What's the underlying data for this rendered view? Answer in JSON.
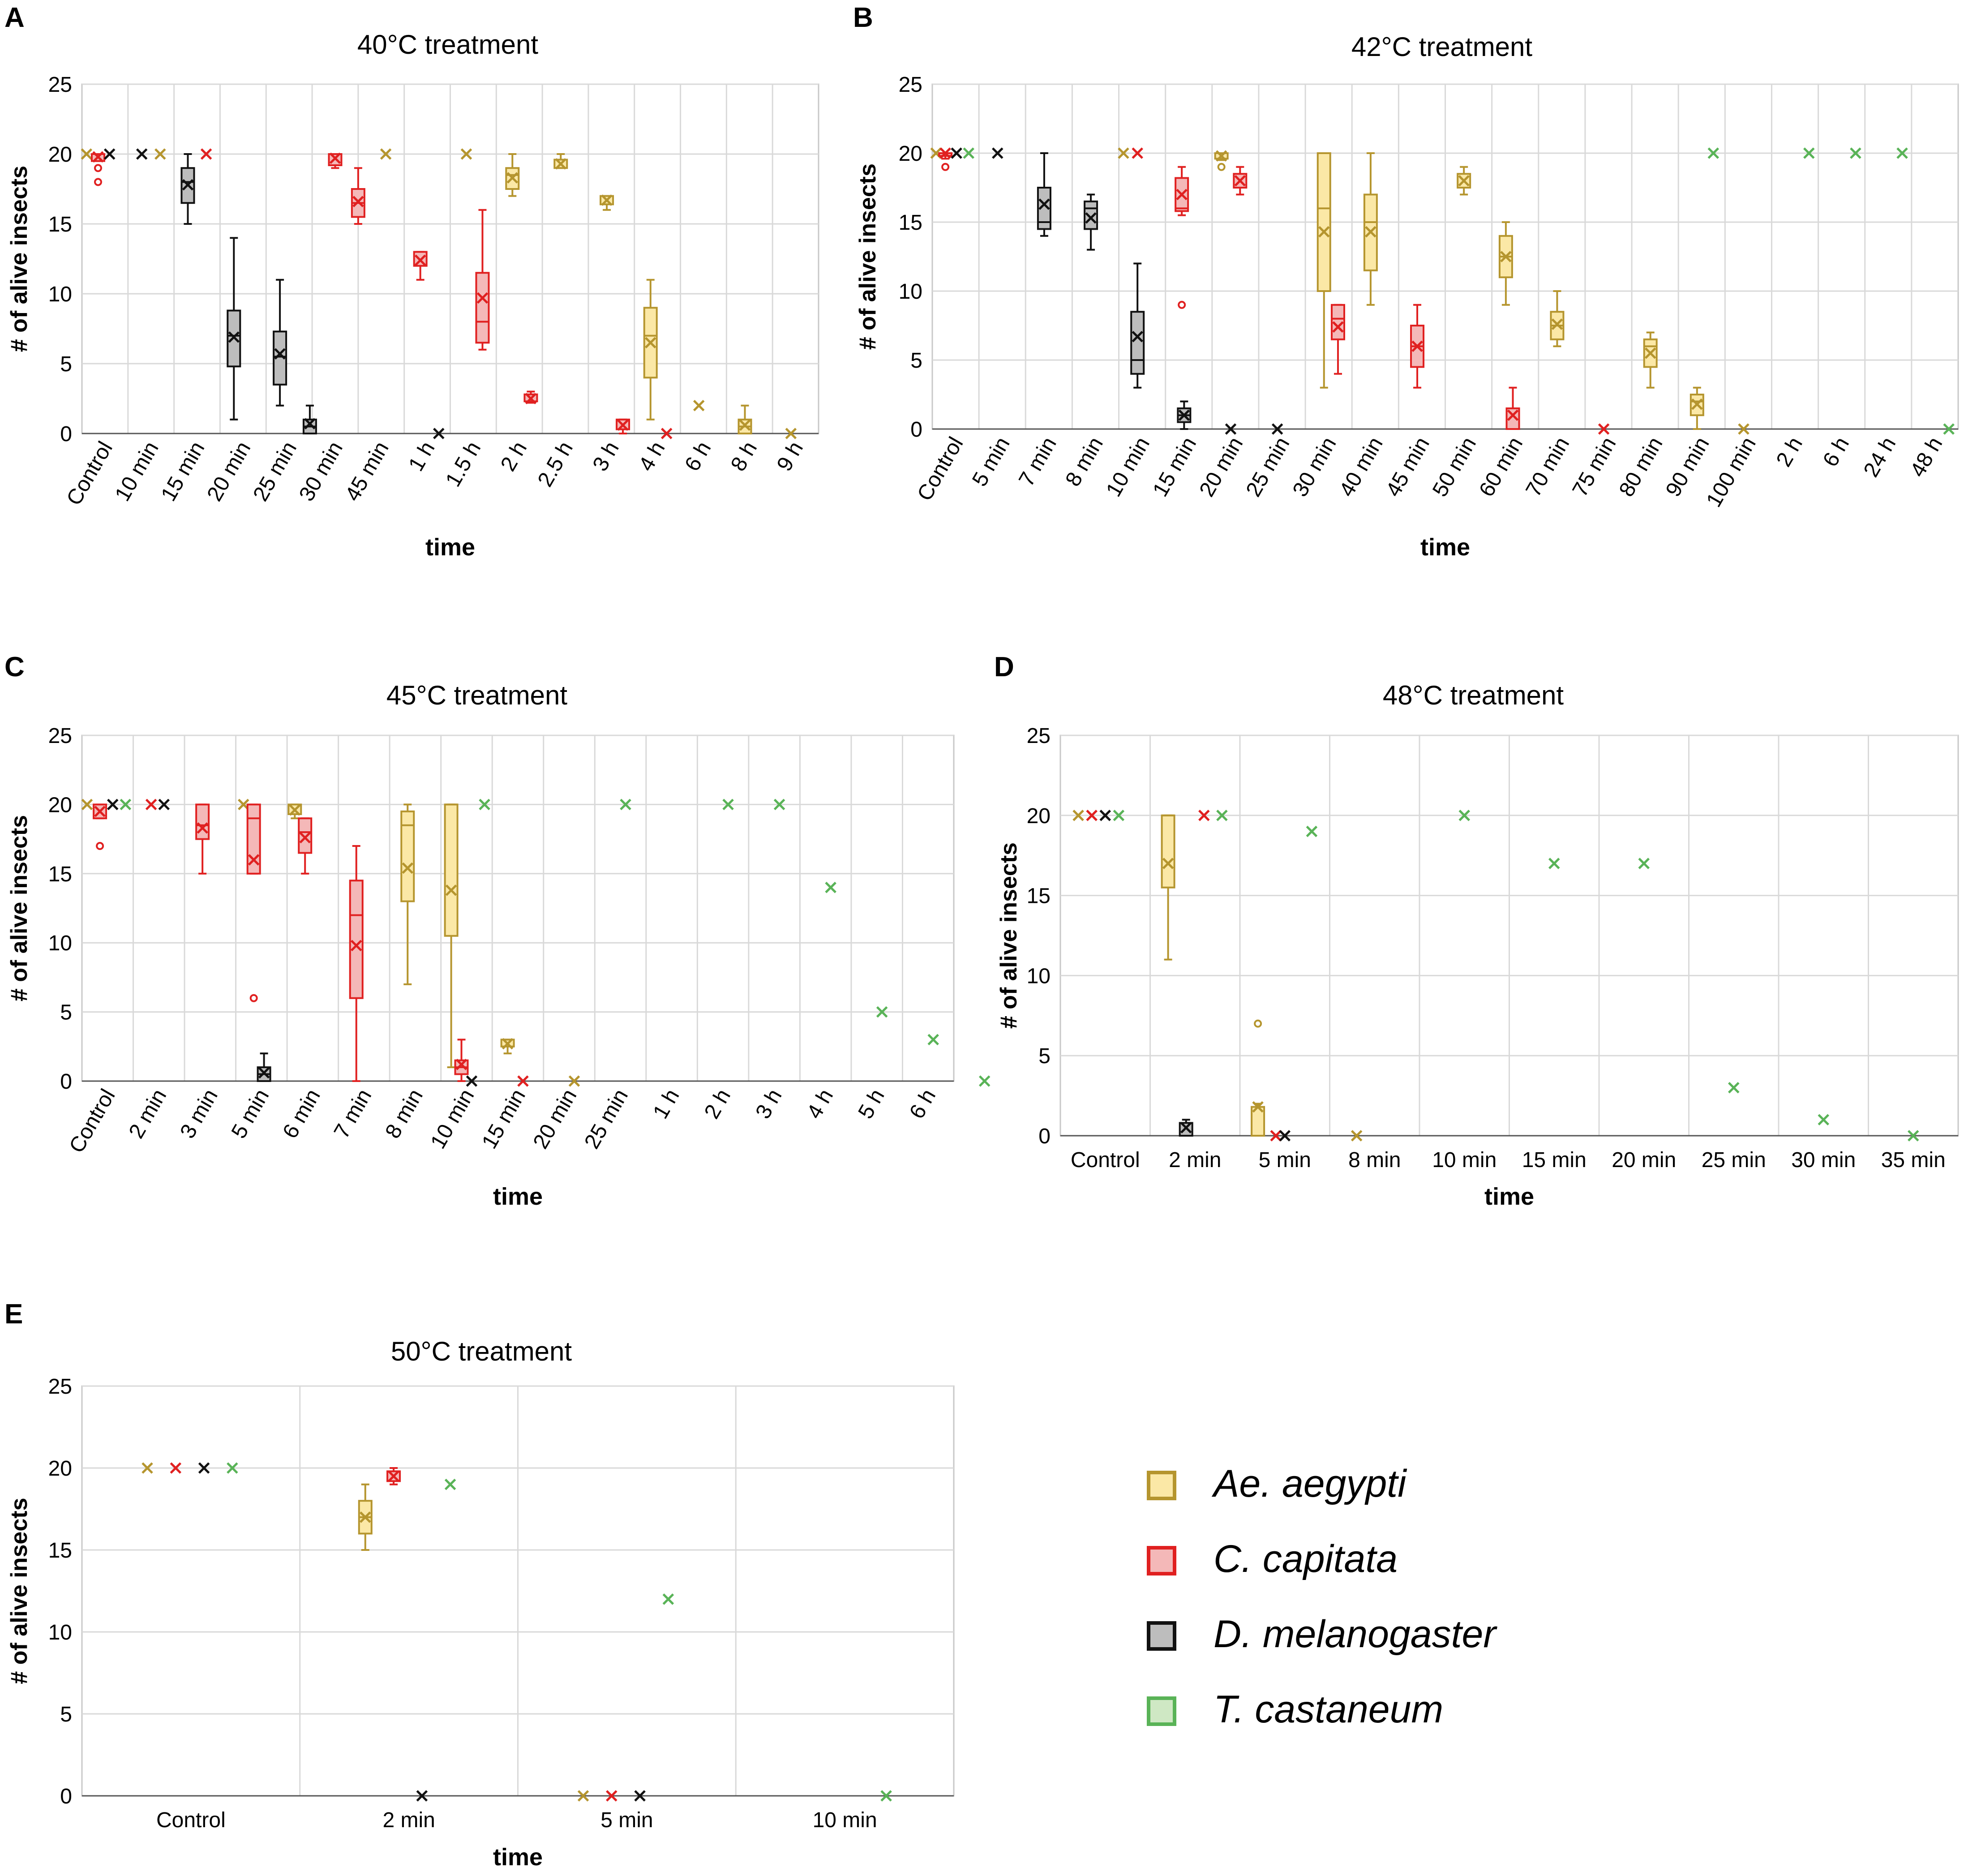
{
  "species": [
    {
      "key": "ae",
      "name": "Ae. aegypti",
      "stroke": "#b5952e",
      "fill": "#fbe8a6"
    },
    {
      "key": "cc",
      "name": "C. capitata",
      "stroke": "#e02020",
      "fill": "#f4b8b8"
    },
    {
      "key": "dm",
      "name": "D. melanogaster",
      "stroke": "#111111",
      "fill": "#bdbdbd"
    },
    {
      "key": "tc",
      "name": "T. castaneum",
      "stroke": "#59b357",
      "fill": "#cfe8c4"
    }
  ],
  "chart_data": [
    {
      "id": "A",
      "type": "boxplot",
      "title": "40°C treatment",
      "xlabel": "time",
      "ylabel": "# of alive insects",
      "ylim": [
        0,
        25
      ],
      "yticks": [
        "0",
        "5",
        "10",
        "15",
        "20",
        "25"
      ],
      "categories": [
        "Control",
        "10 min",
        "15 min",
        "20 min",
        "25 min",
        "30 min",
        "45 min",
        "1 h",
        "1.5 h",
        "2 h",
        "2.5 h",
        "3 h",
        "4 h",
        "6 h",
        "8 h",
        "9 h"
      ],
      "marks": [
        {
          "pos": 0.1,
          "sp": "ae",
          "mean": 20
        },
        {
          "pos": 0.35,
          "sp": "cc",
          "q1": 19.5,
          "q3": 20,
          "lo": 19.5,
          "hi": 20,
          "mean": 19.8,
          "outliers": [
            19,
            18
          ]
        },
        {
          "pos": 0.6,
          "sp": "dm",
          "mean": 20
        },
        {
          "pos": 1.3,
          "sp": "dm",
          "mean": 20
        },
        {
          "pos": 1.7,
          "sp": "ae",
          "mean": 20
        },
        {
          "pos": 2.3,
          "sp": "dm",
          "q1": 16.5,
          "q3": 19,
          "lo": 15,
          "hi": 20,
          "med": 18,
          "mean": 17.8
        },
        {
          "pos": 2.7,
          "sp": "cc",
          "mean": 20
        },
        {
          "pos": 3.3,
          "sp": "dm",
          "q1": 4.8,
          "q3": 8.8,
          "lo": 1,
          "hi": 14,
          "med": 7,
          "mean": 6.9
        },
        {
          "pos": 4.3,
          "sp": "dm",
          "q1": 3.5,
          "q3": 7.3,
          "lo": 2,
          "hi": 11,
          "med": 5.5,
          "mean": 5.7
        },
        {
          "pos": 4.95,
          "sp": "dm",
          "q1": 0,
          "q3": 1,
          "lo": 0,
          "hi": 2,
          "med": 0.5,
          "mean": 0.7
        },
        {
          "pos": 5.5,
          "sp": "cc",
          "q1": 19.2,
          "q3": 20,
          "lo": 19,
          "hi": 20,
          "mean": 19.7
        },
        {
          "pos": 6.0,
          "sp": "cc",
          "q1": 15.5,
          "q3": 17.5,
          "lo": 15,
          "hi": 19,
          "med": 16.5,
          "mean": 16.6
        },
        {
          "pos": 6.6,
          "sp": "ae",
          "mean": 20
        },
        {
          "pos": 7.35,
          "sp": "cc",
          "q1": 12,
          "q3": 13,
          "lo": 11,
          "hi": 13,
          "mean": 12.4
        },
        {
          "pos": 7.75,
          "sp": "dm",
          "mean": 0
        },
        {
          "pos": 8.35,
          "sp": "ae",
          "mean": 20
        },
        {
          "pos": 8.7,
          "sp": "cc",
          "q1": 6.5,
          "q3": 11.5,
          "lo": 6,
          "hi": 16,
          "med": 8,
          "mean": 9.7
        },
        {
          "pos": 9.35,
          "sp": "ae",
          "q1": 17.5,
          "q3": 19,
          "lo": 17,
          "hi": 20,
          "med": 18.5,
          "mean": 18.3
        },
        {
          "pos": 9.75,
          "sp": "cc",
          "q1": 2.3,
          "q3": 2.8,
          "lo": 2.2,
          "hi": 3,
          "mean": 2.5
        },
        {
          "pos": 10.4,
          "sp": "ae",
          "q1": 19,
          "q3": 19.6,
          "lo": 19,
          "hi": 20,
          "mean": 19.3
        },
        {
          "pos": 11.4,
          "sp": "ae",
          "q1": 16.4,
          "q3": 17,
          "lo": 16,
          "hi": 17,
          "mean": 16.7
        },
        {
          "pos": 11.75,
          "sp": "cc",
          "q1": 0.3,
          "q3": 1,
          "lo": 0,
          "hi": 1,
          "mean": 0.6
        },
        {
          "pos": 12.35,
          "sp": "ae",
          "q1": 4,
          "q3": 9,
          "lo": 1,
          "hi": 11,
          "med": 7,
          "mean": 6.5
        },
        {
          "pos": 12.7,
          "sp": "cc",
          "mean": 0
        },
        {
          "pos": 13.4,
          "sp": "ae",
          "mean": 2
        },
        {
          "pos": 14.4,
          "sp": "ae",
          "q1": 0,
          "q3": 1,
          "lo": 0,
          "hi": 2,
          "med": 0.5,
          "mean": 0.6
        },
        {
          "pos": 15.4,
          "sp": "ae",
          "mean": 0
        }
      ]
    },
    {
      "id": "B",
      "type": "boxplot",
      "title": "42°C treatment",
      "xlabel": "time",
      "ylabel": "# of alive  insects",
      "ylim": [
        0,
        25
      ],
      "yticks": [
        "0",
        "5",
        "10",
        "15",
        "20",
        "25"
      ],
      "categories": [
        "Control",
        "5 min",
        "7 min",
        "8 min",
        "10 min",
        "15 min",
        "20 min",
        "25 min",
        "30 min",
        "40 min",
        "45 min",
        "50 min",
        "60 min",
        "70 min",
        "75 min",
        "80 min",
        "90 min",
        "100 min",
        "2 h",
        "6 h",
        "24 h",
        "48 h"
      ],
      "marks": [
        {
          "pos": 0.08,
          "sp": "ae",
          "mean": 20
        },
        {
          "pos": 0.28,
          "sp": "cc",
          "q1": 19.8,
          "q3": 20,
          "lo": 19.6,
          "hi": 20,
          "mean": 20,
          "outliers": [
            19
          ]
        },
        {
          "pos": 0.52,
          "sp": "dm",
          "mean": 20
        },
        {
          "pos": 0.78,
          "sp": "tc",
          "mean": 20
        },
        {
          "pos": 1.4,
          "sp": "dm",
          "mean": 20
        },
        {
          "pos": 2.4,
          "sp": "dm",
          "q1": 14.5,
          "q3": 17.5,
          "lo": 14,
          "hi": 20,
          "med": 15,
          "mean": 16.3
        },
        {
          "pos": 3.4,
          "sp": "dm",
          "q1": 14.5,
          "q3": 16.5,
          "lo": 13,
          "hi": 17,
          "med": 16,
          "mean": 15.3
        },
        {
          "pos": 4.1,
          "sp": "ae",
          "mean": 20
        },
        {
          "pos": 4.4,
          "sp": "cc",
          "mean": 20
        },
        {
          "pos": 4.4,
          "sp": "dm",
          "q1": 4,
          "q3": 8.5,
          "lo": 3,
          "hi": 12,
          "med": 5,
          "mean": 6.7
        },
        {
          "pos": 5.35,
          "sp": "cc",
          "q1": 15.8,
          "q3": 18.2,
          "lo": 15.5,
          "hi": 19,
          "med": 16,
          "mean": 17,
          "outliers": [
            9
          ]
        },
        {
          "pos": 5.4,
          "sp": "dm",
          "q1": 0.5,
          "q3": 1.5,
          "lo": 0,
          "hi": 2,
          "med": 1,
          "mean": 1
        },
        {
          "pos": 6.2,
          "sp": "ae",
          "q1": 19.6,
          "q3": 20,
          "lo": 19.5,
          "hi": 20,
          "mean": 19.8,
          "outliers": [
            19
          ]
        },
        {
          "pos": 6.4,
          "sp": "dm",
          "mean": 0
        },
        {
          "pos": 6.6,
          "sp": "cc",
          "q1": 17.5,
          "q3": 18.5,
          "lo": 17,
          "hi": 19,
          "mean": 18
        },
        {
          "pos": 7.4,
          "sp": "dm",
          "mean": 0
        },
        {
          "pos": 8.4,
          "sp": "ae",
          "q1": 10,
          "q3": 20,
          "lo": 3,
          "hi": 20,
          "med": 16,
          "mean": 14.3
        },
        {
          "pos": 8.7,
          "sp": "cc",
          "q1": 6.5,
          "q3": 9,
          "lo": 4,
          "hi": 9,
          "med": 8,
          "mean": 7.4
        },
        {
          "pos": 9.4,
          "sp": "ae",
          "q1": 11.5,
          "q3": 17,
          "lo": 9,
          "hi": 20,
          "med": 15,
          "mean": 14.3
        },
        {
          "pos": 10.4,
          "sp": "cc",
          "q1": 4.5,
          "q3": 7.5,
          "lo": 3,
          "hi": 9,
          "med": 6,
          "mean": 6
        },
        {
          "pos": 11.4,
          "sp": "ae",
          "q1": 17.5,
          "q3": 18.5,
          "lo": 17,
          "hi": 19,
          "mean": 18
        },
        {
          "pos": 12.3,
          "sp": "ae",
          "q1": 11,
          "q3": 14,
          "lo": 9,
          "hi": 15,
          "med": 12.5,
          "mean": 12.5
        },
        {
          "pos": 12.45,
          "sp": "cc",
          "q1": 0,
          "q3": 1.5,
          "lo": 0,
          "hi": 3,
          "mean": 1
        },
        {
          "pos": 13.4,
          "sp": "ae",
          "q1": 6.5,
          "q3": 8.5,
          "lo": 6,
          "hi": 10,
          "med": 7.5,
          "mean": 7.6
        },
        {
          "pos": 14.4,
          "sp": "cc",
          "mean": 0
        },
        {
          "pos": 15.4,
          "sp": "ae",
          "q1": 4.5,
          "q3": 6.5,
          "lo": 3,
          "hi": 7,
          "med": 6,
          "mean": 5.5
        },
        {
          "pos": 16.4,
          "sp": "ae",
          "q1": 1,
          "q3": 2.5,
          "lo": 0,
          "hi": 3,
          "med": 2,
          "mean": 1.8
        },
        {
          "pos": 16.75,
          "sp": "tc",
          "mean": 20
        },
        {
          "pos": 17.4,
          "sp": "ae",
          "mean": 0
        },
        {
          "pos": 18.8,
          "sp": "tc",
          "mean": 20
        },
        {
          "pos": 19.8,
          "sp": "tc",
          "mean": 20
        },
        {
          "pos": 20.8,
          "sp": "tc",
          "mean": 20
        },
        {
          "pos": 21.8,
          "sp": "tc",
          "mean": 0
        }
      ]
    },
    {
      "id": "C",
      "type": "boxplot",
      "title": "45°C treatment",
      "xlabel": "time",
      "ylabel": "# of alive insects",
      "ylim": [
        0,
        25
      ],
      "yticks": [
        "0",
        "5",
        "10",
        "15",
        "20",
        "25"
      ],
      "categories": [
        "Control",
        "2 min",
        "3 min",
        "5 min",
        "6 min",
        "7 min",
        "8 min",
        "10 min",
        "15 min",
        "20 min",
        "25 min",
        "1 h",
        "2 h",
        "3 h",
        "4 h",
        "5 h",
        "6 h"
      ],
      "marks": [
        {
          "pos": 0.1,
          "sp": "ae",
          "mean": 20
        },
        {
          "pos": 0.35,
          "sp": "cc",
          "q1": 19,
          "q3": 20,
          "lo": 19,
          "hi": 20,
          "mean": 19.5,
          "outliers": [
            17
          ]
        },
        {
          "pos": 0.6,
          "sp": "dm",
          "mean": 20
        },
        {
          "pos": 0.85,
          "sp": "tc",
          "mean": 20
        },
        {
          "pos": 1.35,
          "sp": "cc",
          "mean": 20
        },
        {
          "pos": 1.6,
          "sp": "dm",
          "mean": 20
        },
        {
          "pos": 2.35,
          "sp": "cc",
          "q1": 17.5,
          "q3": 20,
          "lo": 15,
          "hi": 20,
          "med": 18.5,
          "mean": 18.3
        },
        {
          "pos": 3.15,
          "sp": "ae",
          "mean": 20
        },
        {
          "pos": 3.35,
          "sp": "cc",
          "q1": 15,
          "q3": 20,
          "lo": 15,
          "hi": 20,
          "med": 19,
          "mean": 16,
          "outliers": [
            6
          ]
        },
        {
          "pos": 3.55,
          "sp": "dm",
          "q1": 0,
          "q3": 1,
          "lo": 0,
          "hi": 2,
          "med": 0.5,
          "mean": 0.6
        },
        {
          "pos": 4.15,
          "sp": "ae",
          "q1": 19.3,
          "q3": 20,
          "lo": 19,
          "hi": 20,
          "mean": 19.6
        },
        {
          "pos": 4.35,
          "sp": "cc",
          "q1": 16.5,
          "q3": 19,
          "lo": 15,
          "hi": 19,
          "med": 18,
          "mean": 17.6
        },
        {
          "pos": 5.35,
          "sp": "cc",
          "q1": 6,
          "q3": 14.5,
          "lo": 0,
          "hi": 17,
          "med": 12,
          "mean": 9.8
        },
        {
          "pos": 6.35,
          "sp": "ae",
          "q1": 13,
          "q3": 19.5,
          "lo": 7,
          "hi": 20,
          "med": 18.5,
          "mean": 15.4
        },
        {
          "pos": 7.2,
          "sp": "ae",
          "q1": 10.5,
          "q3": 20,
          "lo": 1,
          "hi": 20,
          "med": 20,
          "mean": 13.8
        },
        {
          "pos": 7.4,
          "sp": "cc",
          "q1": 0.5,
          "q3": 1.5,
          "lo": 0,
          "hi": 3,
          "med": 1,
          "mean": 1.2
        },
        {
          "pos": 7.6,
          "sp": "dm",
          "mean": 0
        },
        {
          "pos": 7.85,
          "sp": "tc",
          "mean": 20
        },
        {
          "pos": 8.3,
          "sp": "ae",
          "q1": 2.5,
          "q3": 3,
          "lo": 2,
          "hi": 3,
          "mean": 2.7
        },
        {
          "pos": 8.6,
          "sp": "cc",
          "mean": 0
        },
        {
          "pos": 9.6,
          "sp": "ae",
          "mean": 0
        },
        {
          "pos": 10.6,
          "sp": "tc",
          "mean": 20
        },
        {
          "pos": 12.6,
          "sp": "tc",
          "mean": 20
        },
        {
          "pos": 13.6,
          "sp": "tc",
          "mean": 20
        },
        {
          "pos": 14.6,
          "sp": "tc",
          "mean": 14
        },
        {
          "pos": 15.6,
          "sp": "tc",
          "mean": 5
        },
        {
          "pos": 16.6,
          "sp": "tc",
          "mean": 3
        },
        {
          "pos": 17.6,
          "sp": "tc",
          "mean": 0
        }
      ]
    },
    {
      "id": "D",
      "type": "boxplot",
      "title": "48°C treatment",
      "xlabel": "time",
      "ylabel": "# of alive insects",
      "ylim": [
        0,
        25
      ],
      "yticks": [
        "0",
        "5",
        "10",
        "15",
        "20",
        "25"
      ],
      "categories": [
        "Control",
        "2 min",
        "5 min",
        "8 min",
        "10 min",
        "15 min",
        "20 min",
        "25 min",
        "30 min",
        "35 min"
      ],
      "marks": [
        {
          "pos": 0.2,
          "sp": "ae",
          "mean": 20
        },
        {
          "pos": 0.35,
          "sp": "cc",
          "mean": 20
        },
        {
          "pos": 0.5,
          "sp": "dm",
          "mean": 20
        },
        {
          "pos": 0.65,
          "sp": "tc",
          "mean": 20
        },
        {
          "pos": 1.2,
          "sp": "ae",
          "q1": 15.5,
          "q3": 20,
          "lo": 11,
          "hi": 20,
          "med": 20,
          "mean": 17
        },
        {
          "pos": 1.4,
          "sp": "dm",
          "q1": 0,
          "q3": 0.8,
          "lo": 0,
          "hi": 1,
          "mean": 0.5
        },
        {
          "pos": 1.6,
          "sp": "cc",
          "mean": 20
        },
        {
          "pos": 1.8,
          "sp": "tc",
          "mean": 20
        },
        {
          "pos": 2.2,
          "sp": "ae",
          "q1": 0,
          "q3": 1.8,
          "lo": 0,
          "hi": 2,
          "mean": 1.8,
          "outliers": [
            7
          ]
        },
        {
          "pos": 2.4,
          "sp": "cc",
          "mean": 0
        },
        {
          "pos": 2.5,
          "sp": "dm",
          "mean": 0
        },
        {
          "pos": 2.8,
          "sp": "tc",
          "mean": 19
        },
        {
          "pos": 3.3,
          "sp": "ae",
          "mean": 0
        },
        {
          "pos": 4.5,
          "sp": "tc",
          "mean": 20
        },
        {
          "pos": 5.5,
          "sp": "tc",
          "mean": 17
        },
        {
          "pos": 6.5,
          "sp": "tc",
          "mean": 17
        },
        {
          "pos": 7.5,
          "sp": "tc",
          "mean": 3
        },
        {
          "pos": 8.5,
          "sp": "tc",
          "mean": 1
        },
        {
          "pos": 9.5,
          "sp": "tc",
          "mean": 0
        }
      ]
    },
    {
      "id": "E",
      "type": "boxplot",
      "title": "50°C treatment",
      "xlabel": "time",
      "ylabel": "# of alive insects",
      "ylim": [
        0,
        25
      ],
      "yticks": [
        "0",
        "5",
        "10",
        "15",
        "20",
        "25"
      ],
      "categories": [
        "Control",
        "2 min",
        "5 min",
        "10 min"
      ],
      "marks": [
        {
          "pos": 0.3,
          "sp": "ae",
          "mean": 20
        },
        {
          "pos": 0.43,
          "sp": "cc",
          "mean": 20
        },
        {
          "pos": 0.56,
          "sp": "dm",
          "mean": 20
        },
        {
          "pos": 0.69,
          "sp": "tc",
          "mean": 20
        },
        {
          "pos": 1.3,
          "sp": "ae",
          "q1": 16,
          "q3": 18,
          "lo": 15,
          "hi": 19,
          "med": 17,
          "mean": 17
        },
        {
          "pos": 1.43,
          "sp": "cc",
          "q1": 19.2,
          "q3": 19.8,
          "lo": 19,
          "hi": 20,
          "mean": 19.5
        },
        {
          "pos": 1.56,
          "sp": "dm",
          "mean": 0
        },
        {
          "pos": 1.69,
          "sp": "tc",
          "mean": 19
        },
        {
          "pos": 2.3,
          "sp": "ae",
          "mean": 0
        },
        {
          "pos": 2.43,
          "sp": "cc",
          "mean": 0
        },
        {
          "pos": 2.56,
          "sp": "dm",
          "mean": 0
        },
        {
          "pos": 2.69,
          "sp": "tc",
          "mean": 12
        },
        {
          "pos": 3.69,
          "sp": "tc",
          "mean": 0
        }
      ]
    }
  ]
}
